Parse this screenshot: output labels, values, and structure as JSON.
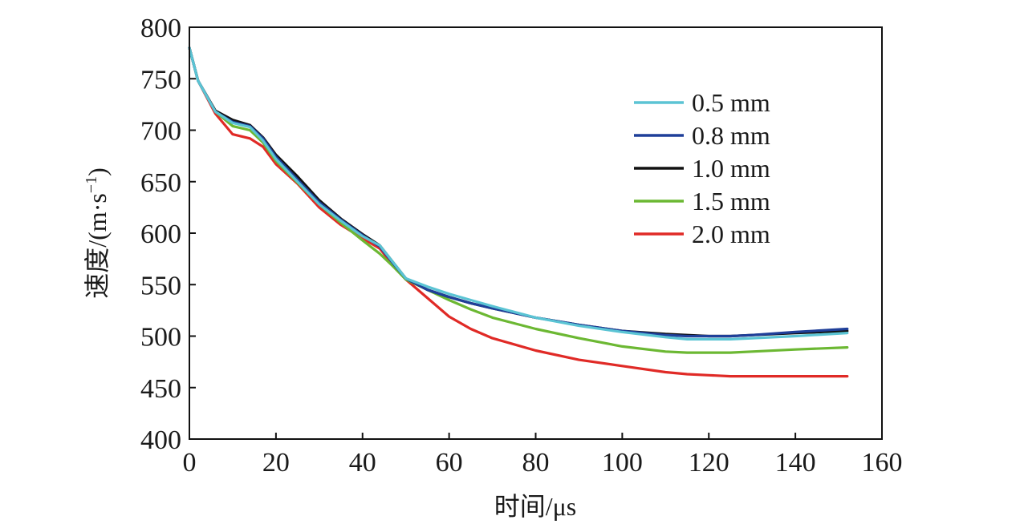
{
  "chart_data": {
    "type": "line",
    "xlabel": "时间/μs",
    "ylabel_main": "速度/(m·s",
    "ylabel_sup": "−1",
    "ylabel_close": ")",
    "xlim": [
      0,
      160
    ],
    "ylim": [
      400,
      800
    ],
    "xticks": [
      0,
      20,
      40,
      60,
      80,
      100,
      120,
      140,
      160
    ],
    "yticks": [
      400,
      450,
      500,
      550,
      600,
      650,
      700,
      750,
      800
    ],
    "grid": false,
    "legend_position": "top-right",
    "series": [
      {
        "name": "0.5 mm",
        "color": "#5bc4d4",
        "points": [
          [
            0,
            780
          ],
          [
            2,
            748
          ],
          [
            6,
            718
          ],
          [
            10,
            707
          ],
          [
            14,
            703
          ],
          [
            17,
            690
          ],
          [
            20,
            672
          ],
          [
            25,
            650
          ],
          [
            30,
            628
          ],
          [
            35,
            612
          ],
          [
            40,
            597
          ],
          [
            44,
            588
          ],
          [
            47,
            572
          ],
          [
            50,
            556
          ],
          [
            55,
            548
          ],
          [
            60,
            541
          ],
          [
            65,
            535
          ],
          [
            70,
            529
          ],
          [
            80,
            518
          ],
          [
            90,
            510
          ],
          [
            100,
            504
          ],
          [
            110,
            499
          ],
          [
            115,
            497
          ],
          [
            120,
            497
          ],
          [
            125,
            497
          ],
          [
            130,
            498
          ],
          [
            140,
            500
          ],
          [
            152,
            503
          ]
        ]
      },
      {
        "name": "0.8 mm",
        "color": "#1f3f99",
        "points": [
          [
            0,
            780
          ],
          [
            2,
            748
          ],
          [
            6,
            718
          ],
          [
            10,
            708
          ],
          [
            14,
            704
          ],
          [
            17,
            692
          ],
          [
            20,
            674
          ],
          [
            25,
            652
          ],
          [
            30,
            630
          ],
          [
            35,
            613
          ],
          [
            40,
            598
          ],
          [
            44,
            587
          ],
          [
            47,
            571
          ],
          [
            50,
            556
          ],
          [
            55,
            545
          ],
          [
            60,
            538
          ],
          [
            65,
            532
          ],
          [
            70,
            527
          ],
          [
            80,
            518
          ],
          [
            90,
            511
          ],
          [
            100,
            505
          ],
          [
            110,
            501
          ],
          [
            115,
            500
          ],
          [
            120,
            500
          ],
          [
            125,
            500
          ],
          [
            130,
            501
          ],
          [
            140,
            504
          ],
          [
            152,
            507
          ]
        ]
      },
      {
        "name": "1.0 mm",
        "color": "#111111",
        "points": [
          [
            0,
            780
          ],
          [
            2,
            748
          ],
          [
            6,
            719
          ],
          [
            10,
            710
          ],
          [
            14,
            705
          ],
          [
            17,
            693
          ],
          [
            20,
            676
          ],
          [
            25,
            655
          ],
          [
            30,
            632
          ],
          [
            35,
            614
          ],
          [
            40,
            599
          ],
          [
            44,
            588
          ],
          [
            47,
            572
          ],
          [
            50,
            556
          ],
          [
            55,
            545
          ],
          [
            60,
            538
          ],
          [
            65,
            532
          ],
          [
            70,
            527
          ],
          [
            80,
            518
          ],
          [
            90,
            511
          ],
          [
            100,
            505
          ],
          [
            110,
            502
          ],
          [
            115,
            501
          ],
          [
            120,
            500
          ],
          [
            125,
            500
          ],
          [
            130,
            501
          ],
          [
            140,
            503
          ],
          [
            152,
            505
          ]
        ]
      },
      {
        "name": "1.5 mm",
        "color": "#6cb833",
        "points": [
          [
            0,
            780
          ],
          [
            2,
            748
          ],
          [
            6,
            718
          ],
          [
            10,
            704
          ],
          [
            14,
            700
          ],
          [
            17,
            688
          ],
          [
            20,
            670
          ],
          [
            25,
            649
          ],
          [
            30,
            628
          ],
          [
            35,
            610
          ],
          [
            40,
            593
          ],
          [
            44,
            580
          ],
          [
            47,
            568
          ],
          [
            50,
            555
          ],
          [
            55,
            545
          ],
          [
            60,
            535
          ],
          [
            65,
            526
          ],
          [
            70,
            518
          ],
          [
            80,
            507
          ],
          [
            90,
            498
          ],
          [
            100,
            490
          ],
          [
            110,
            485
          ],
          [
            115,
            484
          ],
          [
            120,
            484
          ],
          [
            125,
            484
          ],
          [
            130,
            485
          ],
          [
            140,
            487
          ],
          [
            152,
            489
          ]
        ]
      },
      {
        "name": "2.0 mm",
        "color": "#e02a26",
        "points": [
          [
            0,
            780
          ],
          [
            2,
            748
          ],
          [
            6,
            716
          ],
          [
            10,
            696
          ],
          [
            14,
            692
          ],
          [
            17,
            684
          ],
          [
            20,
            667
          ],
          [
            25,
            648
          ],
          [
            30,
            625
          ],
          [
            35,
            608
          ],
          [
            40,
            595
          ],
          [
            44,
            585
          ],
          [
            47,
            569
          ],
          [
            50,
            555
          ],
          [
            55,
            537
          ],
          [
            60,
            519
          ],
          [
            65,
            507
          ],
          [
            70,
            498
          ],
          [
            80,
            486
          ],
          [
            90,
            477
          ],
          [
            100,
            471
          ],
          [
            110,
            465
          ],
          [
            115,
            463
          ],
          [
            120,
            462
          ],
          [
            125,
            461
          ],
          [
            130,
            461
          ],
          [
            140,
            461
          ],
          [
            152,
            461
          ]
        ]
      }
    ]
  }
}
